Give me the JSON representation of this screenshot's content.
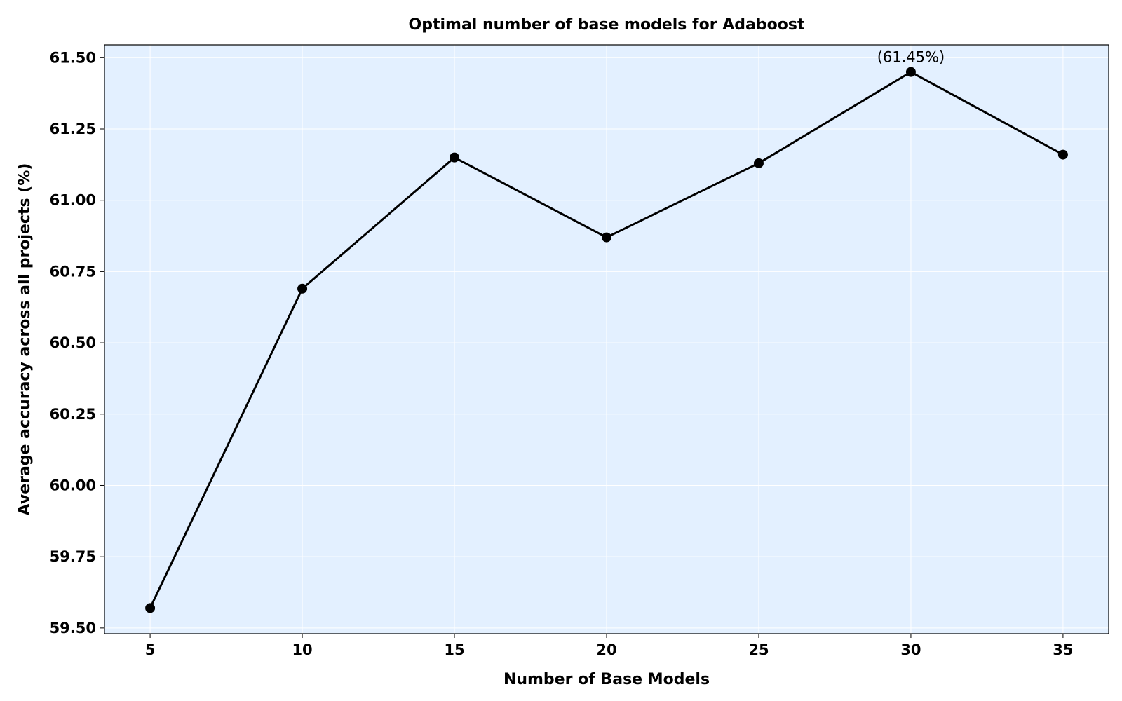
{
  "chart_data": {
    "type": "line",
    "title": "Optimal number of base models for Adaboost",
    "xlabel": "Number of Base Models",
    "ylabel": "Average accuracy across all projects (%)",
    "x": [
      5,
      10,
      15,
      20,
      25,
      30,
      35
    ],
    "series": [
      {
        "values": [
          59.57,
          60.69,
          61.15,
          60.87,
          61.13,
          61.45,
          61.16
        ]
      }
    ],
    "xlim": [
      3.5,
      36.5
    ],
    "ylim": [
      59.48,
      61.545
    ],
    "xticks": [
      5,
      10,
      15,
      20,
      25,
      30,
      35
    ],
    "xtick_labels": [
      "5",
      "10",
      "15",
      "20",
      "25",
      "30",
      "35"
    ],
    "yticks": [
      59.5,
      59.75,
      60.0,
      60.25,
      60.5,
      60.75,
      61.0,
      61.25,
      61.5
    ],
    "ytick_labels": [
      "59.50",
      "59.75",
      "60.00",
      "60.25",
      "60.50",
      "60.75",
      "61.00",
      "61.25",
      "61.50"
    ],
    "grid": true,
    "annotations": [
      {
        "text": "(61.45%)",
        "x": 30,
        "y": 61.45
      }
    ],
    "colors": {
      "plot_background": "#e3f0ff",
      "line": "#000000",
      "marker": "#000000",
      "grid": "#ffffff"
    }
  }
}
